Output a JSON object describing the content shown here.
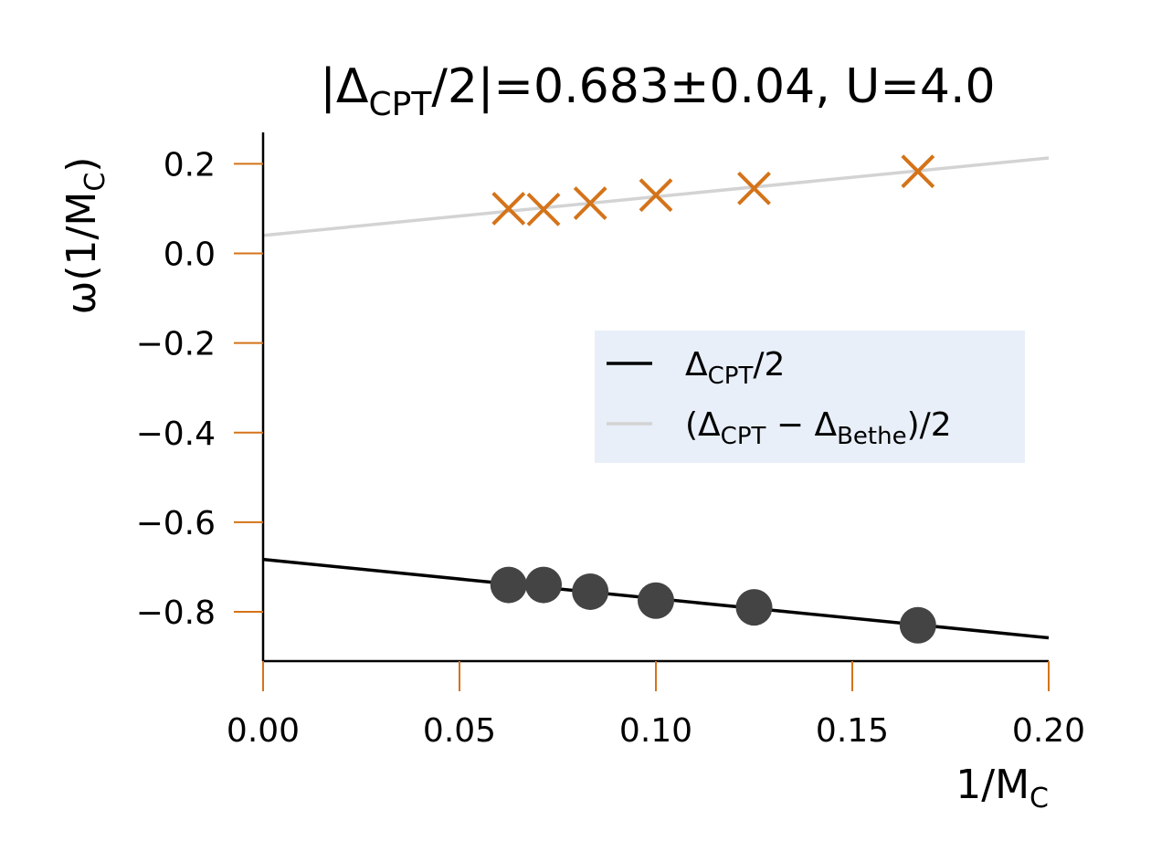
{
  "chart_data": {
    "type": "scatter",
    "title": {
      "prefix": "|Δ",
      "sub": "CPT",
      "suffix": "/2|=0.683±0.04, U=4.0"
    },
    "xlabel": {
      "main": "1/M",
      "sub": "C"
    },
    "ylabel": {
      "prefix": "ω(1/M",
      "sub": "C",
      "suffix": ")"
    },
    "xlim": [
      0.0,
      0.2
    ],
    "ylim": [
      -0.91,
      0.27
    ],
    "xticks": [
      0.0,
      0.05,
      0.1,
      0.15,
      0.2
    ],
    "xtick_labels": [
      "0.00",
      "0.05",
      "0.10",
      "0.15",
      "0.20"
    ],
    "yticks": [
      0.2,
      0.0,
      -0.2,
      -0.4,
      -0.6,
      -0.8
    ],
    "ytick_labels": [
      "0.2",
      "0.0",
      "−0.2",
      "−0.4",
      "−0.6",
      "−0.8"
    ],
    "grid": false,
    "legend_position": "center-right",
    "series": [
      {
        "kind": "points",
        "marker": "circle",
        "color": "#444444",
        "x": [
          0.0625,
          0.0714,
          0.0833,
          0.1,
          0.125,
          0.1667
        ],
        "y": [
          -0.74,
          -0.74,
          -0.755,
          -0.775,
          -0.79,
          -0.83
        ]
      },
      {
        "kind": "points",
        "marker": "x",
        "color": "#d47319",
        "x": [
          0.0625,
          0.0714,
          0.0833,
          0.1,
          0.125,
          0.1667
        ],
        "y": [
          0.1,
          0.098,
          0.112,
          0.13,
          0.145,
          0.183
        ]
      },
      {
        "kind": "line",
        "color": "#000000",
        "x": [
          0.0,
          0.2
        ],
        "y": [
          -0.683,
          -0.858
        ]
      },
      {
        "kind": "line",
        "color": "#d3d3d3",
        "x": [
          0.0,
          0.2
        ],
        "y": [
          0.04,
          0.213
        ]
      }
    ],
    "legend": [
      {
        "color": "#000000",
        "parts": [
          [
            "Δ",
            ""
          ],
          [
            "CPT",
            "sub"
          ],
          [
            "/2",
            ""
          ]
        ]
      },
      {
        "color": "#d3d3d3",
        "parts": [
          [
            "(Δ",
            ""
          ],
          [
            "CPT",
            "sub"
          ],
          [
            " − Δ",
            ""
          ],
          [
            "Bethe",
            "sub"
          ],
          [
            ")/2",
            ""
          ]
        ]
      }
    ],
    "colors": {
      "tick": "#d47319",
      "legend_bg": "#e8eff9"
    }
  }
}
